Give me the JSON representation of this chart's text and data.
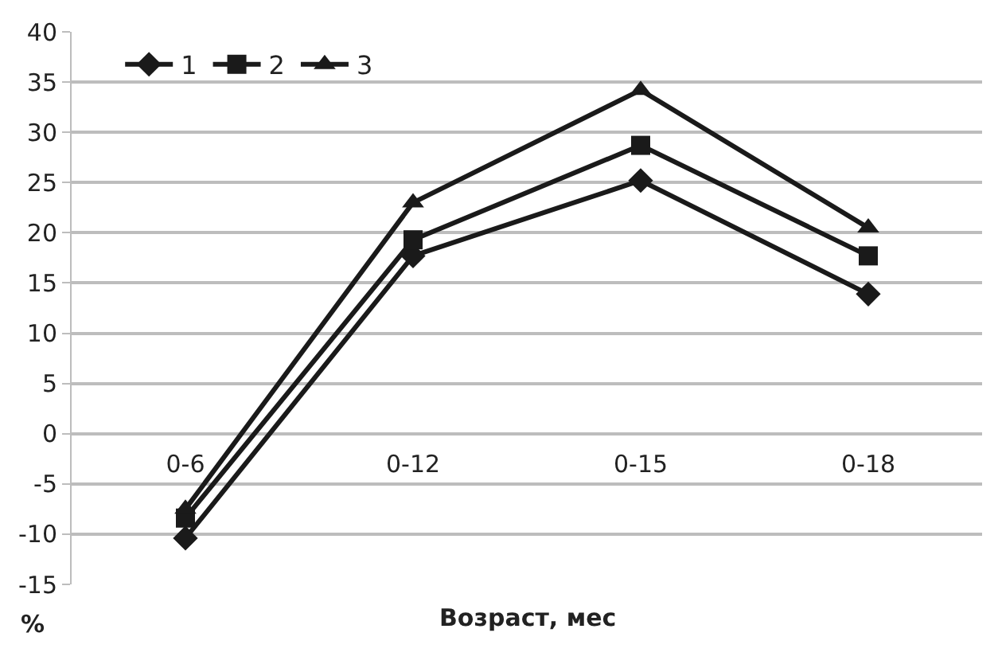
{
  "chart_data": {
    "type": "line",
    "xlabel": "Возраст, мес",
    "ylabel": "%",
    "categories": [
      "0-6",
      "0-12",
      "0-15",
      "0-18"
    ],
    "series": [
      {
        "name": "1",
        "color": "#1a1a1a",
        "marker": "diamond",
        "values": [
          -10.4,
          17.7,
          25.2,
          13.9
        ]
      },
      {
        "name": "2",
        "color": "#1a1a1a",
        "marker": "square",
        "values": [
          -8.4,
          19.3,
          28.7,
          17.7
        ]
      },
      {
        "name": "3",
        "color": "#1a1a1a",
        "marker": "triangle",
        "values": [
          -7.5,
          23.0,
          34.2,
          20.5
        ]
      }
    ],
    "ylim": [
      -15,
      40
    ],
    "yticks": [
      -15,
      -10,
      -5,
      0,
      5,
      10,
      15,
      20,
      25,
      30,
      35,
      40
    ],
    "grid": "y",
    "legend": "top left"
  }
}
